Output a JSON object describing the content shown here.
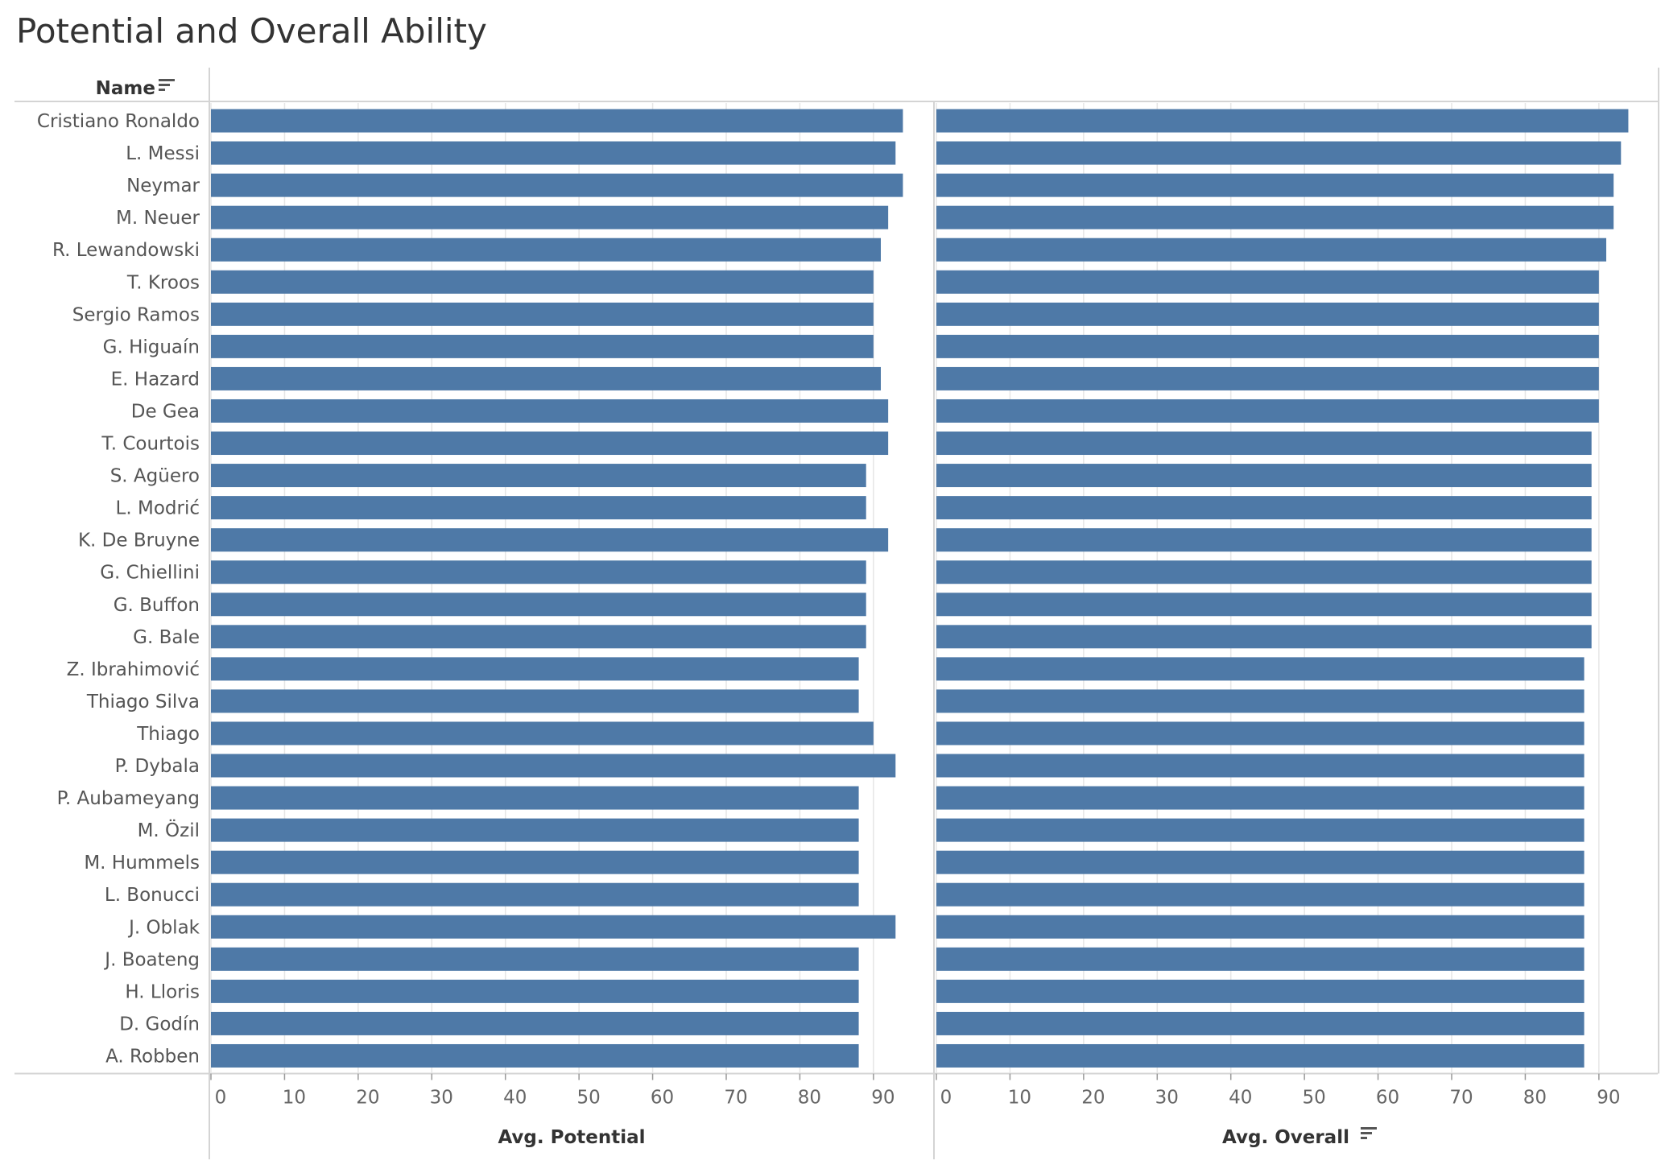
{
  "title": "Potential and Overall Ability",
  "row_header": "Name",
  "sort_icon": "sort-icon",
  "colors": {
    "bar": "#4e79a7"
  },
  "chart_data": {
    "type": "bar",
    "orientation": "horizontal",
    "categories": [
      "Cristiano Ronaldo",
      "L. Messi",
      "Neymar",
      "M. Neuer",
      "R. Lewandowski",
      "T. Kroos",
      "Sergio Ramos",
      "G. Higuaín",
      "E. Hazard",
      "De Gea",
      "T. Courtois",
      "S. Agüero",
      "L. Modrić",
      "K. De Bruyne",
      "G. Chiellini",
      "G. Buffon",
      "G. Bale",
      "Z. Ibrahimović",
      "Thiago Silva",
      "Thiago",
      "P. Dybala",
      "P. Aubameyang",
      "M. Özil",
      "M. Hummels",
      "L. Bonucci",
      "J. Oblak",
      "J. Boateng",
      "H. Lloris",
      "D. Godín",
      "A. Robben"
    ],
    "panels": [
      {
        "name": "Avg. Potential",
        "xlabel": "Avg. Potential",
        "xlim": [
          0,
          98
        ],
        "ticks": [
          0,
          10,
          20,
          30,
          40,
          50,
          60,
          70,
          80,
          90
        ],
        "sorted": false,
        "values": [
          94,
          93,
          94,
          92,
          91,
          90,
          90,
          90,
          91,
          92,
          92,
          89,
          89,
          92,
          89,
          89,
          89,
          88,
          88,
          90,
          93,
          88,
          88,
          88,
          88,
          93,
          88,
          88,
          88,
          88
        ]
      },
      {
        "name": "Avg. Overall",
        "xlabel": "Avg. Overall",
        "xlim": [
          0,
          98
        ],
        "ticks": [
          0,
          10,
          20,
          30,
          40,
          50,
          60,
          70,
          80,
          90
        ],
        "sorted": true,
        "values": [
          94,
          93,
          92,
          92,
          91,
          90,
          90,
          90,
          90,
          90,
          89,
          89,
          89,
          89,
          89,
          89,
          89,
          88,
          88,
          88,
          88,
          88,
          88,
          88,
          88,
          88,
          88,
          88,
          88,
          88
        ]
      }
    ]
  }
}
